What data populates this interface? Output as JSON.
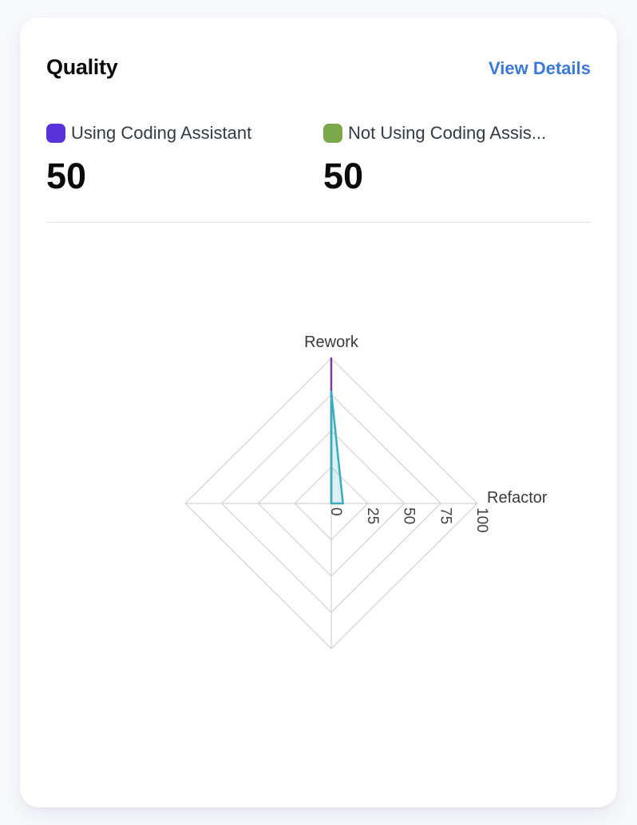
{
  "card": {
    "title": "Quality",
    "action_label": "View Details"
  },
  "legend": [
    {
      "label": "Using Coding Assistant",
      "value": "50",
      "color": "#5733d9"
    },
    {
      "label": "Not Using Coding Assis...",
      "value": "50",
      "color": "#7ba74b"
    }
  ],
  "chart_data": {
    "type": "radar",
    "axes": [
      "Rework",
      "Refactor",
      "",
      ""
    ],
    "ticks": [
      0,
      25,
      50,
      75,
      100
    ],
    "max": 100,
    "series": [
      {
        "name": "Using Coding Assistant",
        "color": "#7c3aad",
        "fill_opacity": 0.18,
        "values": [
          100,
          0,
          0,
          0
        ]
      },
      {
        "name": "Not Using Coding Assis...",
        "color": "#39adbf",
        "fill_opacity": 0.18,
        "values": [
          77,
          8,
          0,
          0
        ]
      }
    ],
    "grid_color": "#d2d2d2",
    "tick_color": "#424242",
    "axis_label_color": "#3a3a3a"
  }
}
